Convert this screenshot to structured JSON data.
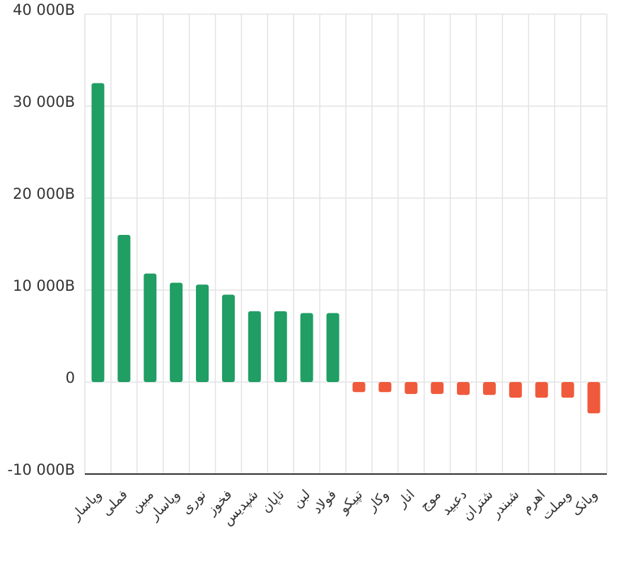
{
  "chart_data": {
    "type": "bar",
    "categories": [
      "وپاسار",
      "فملی",
      "مبین",
      "وپاسار",
      "نوری",
      "فخوز",
      "شپدیس",
      "تاپان",
      "لبن",
      "فولاد",
      "تپیکو",
      "وکار",
      "انار",
      "موج",
      "دعبید",
      "شتران",
      "شبندر",
      "اهرم",
      "وبملت",
      "وبانک"
    ],
    "values": [
      32500,
      16000,
      11800,
      10800,
      10600,
      9500,
      7700,
      7700,
      7500,
      7500,
      -1100,
      -1100,
      -1300,
      -1300,
      -1400,
      -1400,
      -1700,
      -1700,
      -1700,
      -3400
    ],
    "ylim": [
      -10000,
      40000
    ],
    "yticks": [
      {
        "value": 40000,
        "label": "40 000B"
      },
      {
        "value": 30000,
        "label": "30 000B"
      },
      {
        "value": 20000,
        "label": "20 000B"
      },
      {
        "value": 10000,
        "label": "10 000B"
      },
      {
        "value": 0,
        "label": "0"
      },
      {
        "value": -10000,
        "label": "-10 000B"
      }
    ],
    "grid": true,
    "colors": {
      "positive": "#209e63",
      "negative": "#f05a3c",
      "grid": "#e3e3e3",
      "axis": "#333333"
    }
  }
}
